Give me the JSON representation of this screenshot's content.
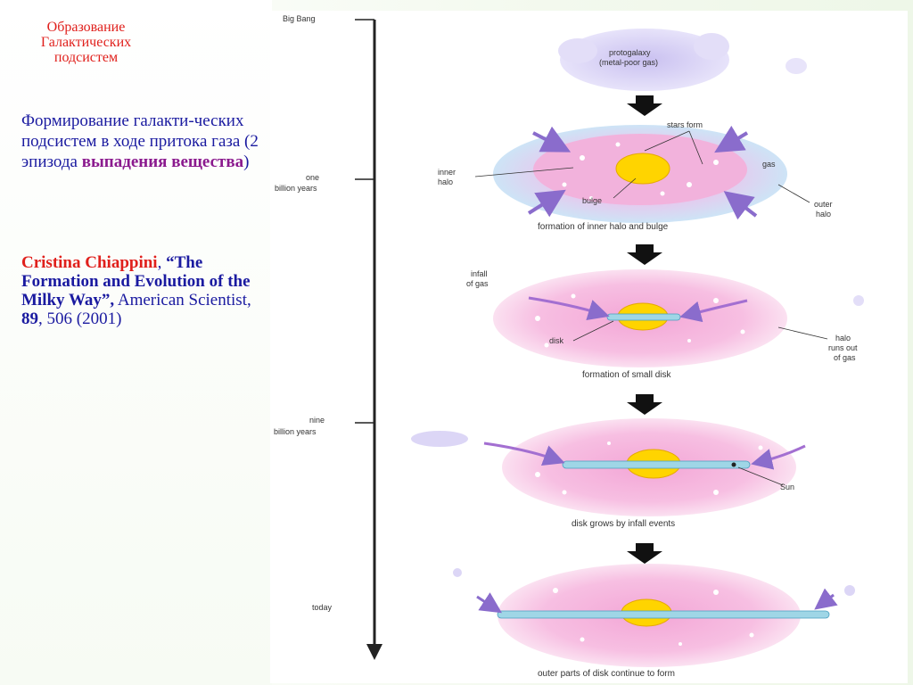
{
  "slide": {
    "title": "Образование Галактических подсистем",
    "description_main": "Формирование галакти-ческих подсистем в ходе притока газа (2 эпизода ",
    "description_highlight": "выпадения вещества",
    "description_end": ")",
    "reference": {
      "author": "Cristina Chiappini",
      "sep": ", ",
      "work": "“The Formation and Evolution of the Milky Way”,",
      "journal": " American Scientist, ",
      "volume": "89",
      "pages": ", 506 (2001)"
    }
  },
  "timeline": {
    "big_bang": "Big Bang",
    "one_billion": "one",
    "one_billion_2": "billion years",
    "nine_billion": "nine",
    "nine_billion_2": "billion years",
    "today": "today"
  },
  "stages": {
    "protogalaxy": "protogalaxy",
    "protogalaxy_2": "(metal-poor gas)",
    "stars_form": "stars form",
    "gas": "gas",
    "inner_halo": "inner",
    "inner_halo_2": "halo",
    "bulge": "bulge",
    "outer_halo": "outer",
    "outer_halo_2": "halo",
    "caption1": "formation of inner halo and bulge",
    "infall_of_gas": "infall",
    "infall_of_gas_2": "of gas",
    "disk": "disk",
    "halo_runs_out": "halo",
    "halo_runs_out_2": "runs out",
    "halo_runs_out_3": "of gas",
    "caption2": "formation of small disk",
    "sun": "Sun",
    "caption3": "disk grows by infall events",
    "caption4": "outer parts of disk continue to form"
  },
  "colors": {
    "title": "#e0201c",
    "text": "#1a1aa0",
    "highlight": "#8b1a8e",
    "halo_pink": "#f59ad0",
    "bulge_yellow": "#ffd400",
    "gas_purple": "#b9b3ea",
    "disk_blue": "#9fd6e6"
  }
}
